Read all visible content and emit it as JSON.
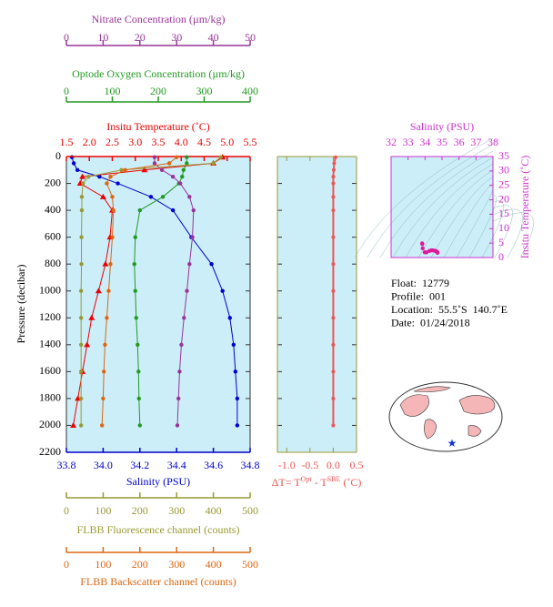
{
  "chart_data": {
    "type": "line",
    "pressure_axis": {
      "label": "Pressure (decibar)",
      "ylim": [
        0,
        2200
      ],
      "yticks": [
        0,
        200,
        400,
        600,
        800,
        1000,
        1200,
        1400,
        1600,
        1800,
        2000,
        2200
      ]
    },
    "pressure": [
      5,
      50,
      100,
      150,
      200,
      300,
      400,
      600,
      800,
      1000,
      1200,
      1400,
      1600,
      1800,
      2000
    ],
    "x_axes": [
      {
        "label": "Salinity (PSU)",
        "color": "#0000cc",
        "marker": "circle",
        "xlim": [
          33.8,
          34.8
        ],
        "xticks": [
          {
            "value": 33.8,
            "label": "33.8"
          },
          {
            "value": 34,
            "label": "34.0"
          },
          {
            "value": 34.2,
            "label": "34.2"
          },
          {
            "value": 34.4,
            "label": "34.4"
          },
          {
            "value": 34.6,
            "label": "34.6"
          },
          {
            "value": 34.8,
            "label": "34.8"
          }
        ],
        "values": [
          33.83,
          33.84,
          33.86,
          33.98,
          34.08,
          34.26,
          34.38,
          34.48,
          34.59,
          34.65,
          34.69,
          34.71,
          34.72,
          34.73,
          34.73
        ]
      },
      {
        "label": "Insitu Temperature (˚C)",
        "color": "#ee0000",
        "marker": "triangle",
        "xlim": [
          1.5,
          5.5
        ],
        "xticks": [
          1.5,
          {
            "value": 2,
            "label": "2.0"
          },
          2.5,
          {
            "value": 3,
            "label": "3.0"
          },
          3.5,
          {
            "value": 4,
            "label": "4.0"
          },
          4.5,
          {
            "value": 5,
            "label": "5.0"
          },
          5.5
        ],
        "values": [
          4.9,
          4.7,
          3.2,
          1.85,
          1.8,
          2.3,
          2.5,
          2.45,
          2.35,
          2.2,
          2.05,
          1.95,
          1.85,
          1.75,
          1.65
        ]
      },
      {
        "label": "Optode Oxygen Concentration (µm/kg)",
        "color": "#229922",
        "marker": "circle",
        "xlim": [
          0,
          400
        ],
        "xticks": [
          0,
          100,
          200,
          300,
          400
        ],
        "values": [
          262,
          262,
          255,
          252,
          245,
          210,
          160,
          150,
          148,
          150,
          152,
          155,
          157,
          158,
          160
        ]
      },
      {
        "label": "Nitrate Concentration (µm/kg)",
        "color": "#993399",
        "marker": "circle",
        "xlim": [
          0,
          50
        ],
        "xticks": [
          0,
          10,
          20,
          30,
          40,
          50
        ],
        "values": [
          24,
          24,
          26,
          29,
          31,
          33.5,
          34.6,
          34.3,
          33.5,
          32.8,
          32,
          31.3,
          30.8,
          30.5,
          30.2
        ]
      },
      {
        "label": "FLBB Fluorescence channel (counts)",
        "color": "#999933",
        "marker": "circle",
        "xlim": [
          0,
          500
        ],
        "xticks": [
          0,
          100,
          200,
          300,
          400,
          500
        ],
        "values": [
          420,
          400,
          150,
          60,
          45,
          42,
          42,
          41,
          41,
          40,
          40,
          40,
          40,
          40,
          40
        ]
      },
      {
        "label": "FLBB Backscatter channel (counts)",
        "color": "#dd6611",
        "marker": "circle",
        "xlim": [
          0,
          500
        ],
        "xticks": [
          0,
          100,
          200,
          300,
          400,
          500
        ],
        "values": [
          300,
          280,
          160,
          120,
          110,
          125,
          128,
          125,
          120,
          115,
          110,
          105,
          102,
          100,
          97
        ]
      }
    ],
    "delta_t": {
      "label_parts": [
        "ΔT= T",
        "Opt",
        " - T",
        "SBE",
        " (˚C)"
      ],
      "color": "#ee5555",
      "xlim": [
        -1.2,
        0.5
      ],
      "xticks": [
        {
          "value": -1,
          "label": "-1.0"
        },
        -0.5,
        {
          "value": 0,
          "label": "0.0"
        },
        0.5
      ],
      "values": [
        0.05,
        0.02,
        0.01,
        0,
        0,
        0,
        0,
        0,
        0,
        0,
        0,
        0,
        0,
        0,
        0
      ]
    },
    "ts": {
      "xlabel": "Salinity (PSU)",
      "ylabel": "Insitu Temperature (˚C)",
      "color": "#cc33cc",
      "mark_color": "#e0189a",
      "xlim": [
        32,
        38
      ],
      "xticks": [
        32,
        33,
        34,
        35,
        36,
        37,
        38
      ],
      "ylim": [
        0,
        35
      ],
      "yticks": [
        0,
        5,
        10,
        15,
        20,
        25,
        30,
        35
      ]
    },
    "info": [
      "Float:  12779",
      "Profile:  001",
      "Location:  55.5˚S  140.7˚E",
      "Date:  01/24/2018"
    ]
  }
}
